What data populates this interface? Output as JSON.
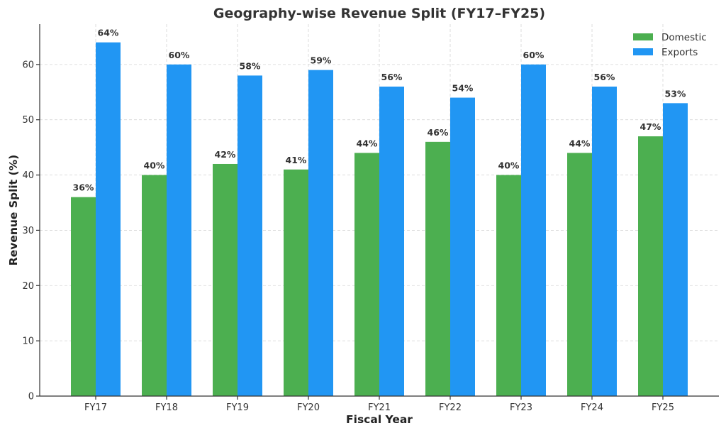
{
  "chart_data": {
    "type": "bar",
    "title": "Geography-wise Revenue Split (FY17–FY25)",
    "xlabel": "Fiscal Year",
    "ylabel": "Revenue Split (%)",
    "categories": [
      "FY17",
      "FY18",
      "FY19",
      "FY20",
      "FY21",
      "FY22",
      "FY23",
      "FY24",
      "FY25"
    ],
    "series": [
      {
        "name": "Domestic",
        "color": "#4caf50",
        "values": [
          36,
          40,
          42,
          41,
          44,
          46,
          40,
          44,
          47
        ]
      },
      {
        "name": "Exports",
        "color": "#2196f3",
        "values": [
          64,
          60,
          58,
          59,
          56,
          54,
          60,
          56,
          53
        ]
      }
    ],
    "data_label_suffix": "%",
    "ylim": [
      0,
      67.3
    ],
    "yticks": [
      0,
      10,
      20,
      30,
      40,
      50,
      60
    ],
    "grid": true,
    "legend_position": "top-right"
  }
}
